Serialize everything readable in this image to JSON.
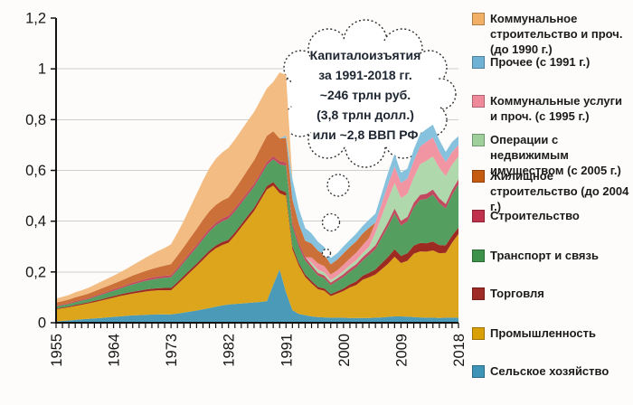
{
  "chart_data": {
    "type": "area",
    "stacked": true,
    "title": "",
    "xlabel": "",
    "ylabel": "",
    "x_range": [
      1955,
      2018
    ],
    "x_step": 1,
    "ylim": [
      0,
      1.2
    ],
    "grid": "horizontal",
    "legend_position": "right",
    "x_tick_years": [
      1955,
      1964,
      1973,
      1982,
      1991,
      2000,
      2009,
      2018
    ],
    "x_tick_labels": [
      "1955",
      "1964",
      "1973",
      "1982",
      "1991",
      "2000",
      "2009",
      "2018"
    ],
    "y_ticks": [
      {
        "label": "0",
        "value": 0
      },
      {
        "label": "0,2",
        "value": 0.2
      },
      {
        "label": "0,4",
        "value": 0.4
      },
      {
        "label": "0,6",
        "value": 0.6
      },
      {
        "label": "0,8",
        "value": 0.8
      },
      {
        "label": "1",
        "value": 1.0
      },
      {
        "label": "1,2",
        "value": 1.2
      }
    ],
    "series": [
      {
        "name": "Сельское хозяйство",
        "color": "#4B9BB8",
        "values": [
          0.005,
          0.007,
          0.009,
          0.011,
          0.013,
          0.015,
          0.017,
          0.019,
          0.021,
          0.023,
          0.025,
          0.027,
          0.029,
          0.03,
          0.031,
          0.032,
          0.033,
          0.033,
          0.033,
          0.036,
          0.04,
          0.044,
          0.048,
          0.053,
          0.058,
          0.063,
          0.068,
          0.072,
          0.074,
          0.076,
          0.078,
          0.08,
          0.082,
          0.085,
          0.15,
          0.21,
          0.12,
          0.05,
          0.035,
          0.03,
          0.025,
          0.022,
          0.021,
          0.02,
          0.02,
          0.02,
          0.019,
          0.019,
          0.019,
          0.019,
          0.02,
          0.021,
          0.023,
          0.025,
          0.025,
          0.024,
          0.022,
          0.021,
          0.02,
          0.02,
          0.019,
          0.02,
          0.02,
          0.02
        ]
      },
      {
        "name": "Промышленность",
        "color": "#DCA51B",
        "values": [
          0.048,
          0.05,
          0.052,
          0.055,
          0.058,
          0.061,
          0.064,
          0.068,
          0.072,
          0.076,
          0.08,
          0.083,
          0.086,
          0.089,
          0.092,
          0.094,
          0.095,
          0.095,
          0.095,
          0.115,
          0.135,
          0.155,
          0.175,
          0.195,
          0.215,
          0.23,
          0.238,
          0.243,
          0.27,
          0.3,
          0.33,
          0.36,
          0.4,
          0.44,
          0.39,
          0.3,
          0.38,
          0.24,
          0.19,
          0.15,
          0.13,
          0.11,
          0.105,
          0.085,
          0.095,
          0.105,
          0.12,
          0.13,
          0.15,
          0.16,
          0.17,
          0.19,
          0.21,
          0.235,
          0.21,
          0.22,
          0.25,
          0.26,
          0.26,
          0.265,
          0.255,
          0.255,
          0.295,
          0.33
        ]
      },
      {
        "name": "Торговля",
        "color": "#9E2B22",
        "values": [
          0.003,
          0.003,
          0.003,
          0.004,
          0.004,
          0.004,
          0.005,
          0.005,
          0.006,
          0.006,
          0.006,
          0.007,
          0.007,
          0.007,
          0.008,
          0.008,
          0.008,
          0.009,
          0.009,
          0.009,
          0.01,
          0.01,
          0.01,
          0.011,
          0.011,
          0.011,
          0.012,
          0.012,
          0.012,
          0.012,
          0.013,
          0.013,
          0.013,
          0.013,
          0.014,
          0.014,
          0.014,
          0.012,
          0.011,
          0.01,
          0.01,
          0.009,
          0.009,
          0.008,
          0.009,
          0.01,
          0.012,
          0.014,
          0.016,
          0.018,
          0.02,
          0.024,
          0.027,
          0.03,
          0.028,
          0.03,
          0.032,
          0.033,
          0.033,
          0.035,
          0.032,
          0.03,
          0.028,
          0.025
        ]
      },
      {
        "name": "Транспорт и связь",
        "color": "#549E5F",
        "values": [
          0.008,
          0.009,
          0.01,
          0.011,
          0.012,
          0.013,
          0.015,
          0.017,
          0.019,
          0.021,
          0.023,
          0.026,
          0.029,
          0.032,
          0.034,
          0.036,
          0.038,
          0.04,
          0.042,
          0.047,
          0.052,
          0.058,
          0.064,
          0.07,
          0.075,
          0.079,
          0.081,
          0.083,
          0.083,
          0.083,
          0.083,
          0.083,
          0.083,
          0.083,
          0.09,
          0.1,
          0.105,
          0.08,
          0.065,
          0.055,
          0.05,
          0.045,
          0.04,
          0.035,
          0.04,
          0.045,
          0.05,
          0.055,
          0.06,
          0.07,
          0.08,
          0.1,
          0.12,
          0.14,
          0.12,
          0.125,
          0.15,
          0.17,
          0.175,
          0.185,
          0.165,
          0.145,
          0.16,
          0.17
        ]
      },
      {
        "name": "Строительство",
        "color": "#C24A60",
        "values": [
          0.003,
          0.003,
          0.003,
          0.004,
          0.004,
          0.004,
          0.005,
          0.005,
          0.005,
          0.006,
          0.006,
          0.006,
          0.007,
          0.007,
          0.007,
          0.008,
          0.008,
          0.008,
          0.008,
          0.009,
          0.009,
          0.01,
          0.01,
          0.011,
          0.011,
          0.011,
          0.012,
          0.012,
          0.012,
          0.012,
          0.012,
          0.012,
          0.012,
          0.012,
          0.012,
          0.012,
          0.013,
          0.015,
          0.014,
          0.013,
          0.012,
          0.011,
          0.011,
          0.01,
          0.01,
          0.012,
          0.012,
          0.013,
          0.013,
          0.014,
          0.015,
          0.016,
          0.018,
          0.02,
          0.018,
          0.018,
          0.019,
          0.02,
          0.02,
          0.02,
          0.019,
          0.018,
          0.019,
          0.02
        ]
      },
      {
        "name": "Операции с недвижимым имуществом (с 2005 г.)",
        "color": "#AFD9AC",
        "values": [
          0,
          0,
          0,
          0,
          0,
          0,
          0,
          0,
          0,
          0,
          0,
          0,
          0,
          0,
          0,
          0,
          0,
          0,
          0,
          0,
          0,
          0,
          0,
          0,
          0,
          0,
          0,
          0,
          0,
          0,
          0,
          0,
          0,
          0,
          0,
          0,
          0,
          0,
          0,
          0,
          0.01,
          0.012,
          0.012,
          0.01,
          0.01,
          0.012,
          0.013,
          0.015,
          0.016,
          0.018,
          0.05,
          0.07,
          0.09,
          0.1,
          0.09,
          0.09,
          0.1,
          0.12,
          0.13,
          0.13,
          0.12,
          0.11,
          0.1,
          0.09
        ]
      },
      {
        "name": "Коммунальные услуги и проч. (с 1995 г.)",
        "color": "#F195A3",
        "values": [
          0,
          0,
          0,
          0,
          0,
          0,
          0,
          0,
          0,
          0,
          0,
          0,
          0,
          0,
          0,
          0,
          0,
          0,
          0,
          0,
          0,
          0,
          0,
          0,
          0,
          0,
          0,
          0,
          0,
          0,
          0,
          0,
          0,
          0,
          0,
          0,
          0,
          0,
          0,
          0,
          0.02,
          0.025,
          0.025,
          0.022,
          0.022,
          0.025,
          0.027,
          0.03,
          0.032,
          0.035,
          0.04,
          0.05,
          0.06,
          0.065,
          0.06,
          0.06,
          0.065,
          0.07,
          0.075,
          0.075,
          0.065,
          0.055,
          0.05,
          0.045
        ]
      },
      {
        "name": "Жилищное строительство (до 2004 г.)",
        "color": "#CB7038",
        "values": [
          0.012,
          0.013,
          0.014,
          0.015,
          0.016,
          0.017,
          0.018,
          0.02,
          0.021,
          0.022,
          0.024,
          0.026,
          0.028,
          0.03,
          0.032,
          0.034,
          0.037,
          0.04,
          0.044,
          0.048,
          0.052,
          0.057,
          0.062,
          0.066,
          0.069,
          0.07,
          0.07,
          0.071,
          0.075,
          0.08,
          0.086,
          0.092,
          0.098,
          0.103,
          0.098,
          0.09,
          0.095,
          0.09,
          0.075,
          0.065,
          0.055,
          0.05,
          0.045,
          0.04,
          0.042,
          0.045,
          0.045,
          0.045,
          0.045,
          0.04,
          0,
          0,
          0,
          0,
          0,
          0,
          0,
          0,
          0,
          0,
          0,
          0,
          0,
          0
        ]
      },
      {
        "name": "Прочее (с 1991 г.)",
        "color": "#86C2DE",
        "values": [
          0,
          0,
          0,
          0,
          0,
          0,
          0,
          0,
          0,
          0,
          0,
          0,
          0,
          0,
          0,
          0,
          0,
          0,
          0,
          0,
          0,
          0,
          0,
          0,
          0,
          0,
          0,
          0,
          0,
          0,
          0,
          0,
          0,
          0,
          0,
          0,
          0.01,
          0.08,
          0.06,
          0.05,
          0.04,
          0.035,
          0.03,
          0.025,
          0.025,
          0.027,
          0.028,
          0.03,
          0.03,
          0.032,
          0.035,
          0.04,
          0.045,
          0.05,
          0.04,
          0.04,
          0.045,
          0.05,
          0.05,
          0.05,
          0.045,
          0.04,
          0.04,
          0.035
        ]
      },
      {
        "name": "Коммунальное строительство и проч. (до 1990 г.)",
        "color": "#F3BC82",
        "values": [
          0.016,
          0.017,
          0.018,
          0.02,
          0.021,
          0.023,
          0.025,
          0.027,
          0.029,
          0.031,
          0.034,
          0.037,
          0.041,
          0.046,
          0.052,
          0.058,
          0.064,
          0.07,
          0.078,
          0.09,
          0.104,
          0.12,
          0.138,
          0.155,
          0.17,
          0.182,
          0.19,
          0.196,
          0.196,
          0.195,
          0.193,
          0.19,
          0.188,
          0.187,
          0.195,
          0.26,
          0.24,
          0,
          0,
          0,
          0,
          0,
          0,
          0,
          0,
          0,
          0,
          0,
          0,
          0,
          0,
          0,
          0,
          0,
          0,
          0,
          0,
          0,
          0,
          0,
          0,
          0,
          0,
          0
        ]
      }
    ]
  },
  "legend": {
    "items": [
      {
        "label": "Коммунальное строительство и проч. (до 1990 г.)",
        "color": "#F2B066"
      },
      {
        "label": "Прочее (с 1991 г.)",
        "color": "#6FB2D6"
      },
      {
        "label": "Коммунальные услуги и проч. (с 1995 г.)",
        "color": "#EF8A9B"
      },
      {
        "label": "Операции с недвижимым имуществом (с 2005 г.)",
        "color": "#9FD09C"
      },
      {
        "label": "Жилищное строительство (до 2004 г.)",
        "color": "#C55A11"
      },
      {
        "label": "Строительство",
        "color": "#C0314B"
      },
      {
        "label": "Транспорт и связь",
        "color": "#3E9149"
      },
      {
        "label": "Торговля",
        "color": "#9E2B25"
      },
      {
        "label": "Промышленность",
        "color": "#D9A005"
      },
      {
        "label": "Сельское хозяйство",
        "color": "#3D94B6"
      }
    ]
  },
  "annotation": {
    "lines": [
      "Капиталоизъятия",
      "за 1991-2018 гг.",
      "~246 трлн руб.",
      "(3,8 трлн долл.)",
      "или ~2,8 ВВП РФ"
    ]
  },
  "colors": {
    "background": "#fdfcfa",
    "gridline": "#cfcfcf",
    "axis": "#111111",
    "annotation_outline": "#2f2f2f"
  }
}
